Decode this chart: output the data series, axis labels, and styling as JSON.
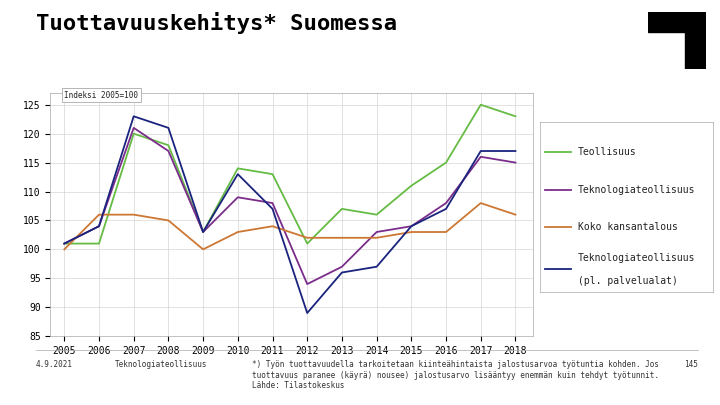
{
  "title": "Tuottavuuskehitys* Suomessa",
  "ylabel_note": "Indeksi 2005=100",
  "years": [
    2005,
    2006,
    2007,
    2008,
    2009,
    2010,
    2011,
    2012,
    2013,
    2014,
    2015,
    2016,
    2017,
    2018
  ],
  "series": {
    "Teollisuus": {
      "values": [
        101,
        101,
        120,
        118,
        103,
        114,
        113,
        101,
        107,
        106,
        111,
        115,
        125,
        123
      ],
      "color": "#66bb44",
      "linewidth": 1.3,
      "linestyle": "-"
    },
    "Teknologiateollisuus": {
      "values": [
        101,
        104,
        121,
        117,
        103,
        109,
        108,
        94,
        97,
        103,
        104,
        108,
        116,
        115
      ],
      "color": "#7b2d8b",
      "linewidth": 1.3,
      "linestyle": "-"
    },
    "Koko kansantalous": {
      "values": [
        100,
        106,
        106,
        105,
        100,
        103,
        104,
        102,
        102,
        102,
        103,
        103,
        108,
        106
      ],
      "color": "#cc7733",
      "linewidth": 1.3,
      "linestyle": "-"
    },
    "Teknologiateollisuus\n(pl. palvelualat)": {
      "values": [
        101,
        104,
        123,
        121,
        103,
        113,
        107,
        89,
        96,
        97,
        104,
        107,
        117,
        117
      ],
      "color": "#1a237e",
      "linewidth": 1.3,
      "linestyle": "-"
    }
  },
  "xlim": [
    2004.6,
    2018.5
  ],
  "ylim": [
    85,
    127
  ],
  "yticks": [
    85,
    90,
    95,
    100,
    105,
    110,
    115,
    120,
    125
  ],
  "xticks": [
    2005,
    2006,
    2007,
    2008,
    2009,
    2010,
    2011,
    2012,
    2013,
    2014,
    2015,
    2016,
    2017,
    2018
  ],
  "background_color": "#ffffff",
  "plot_bg_color": "#ffffff",
  "grid_color": "#cccccc",
  "footer_left": "4.9.2021",
  "footer_center": "Teknologiateollisuus",
  "footer_right_note": "*) Työn tuottavuudella tarkoitetaan kiinteähintaista jalostusarvoa työtuntia kohden. Jos\ntuottavuus paranee (käyrä) nousee) jalostusarvo lisääntyy enemmän kuin tehdyt työtunnit.\nLähde: Tilastokeskus",
  "page_number": "145",
  "title_fontsize": 16,
  "tick_fontsize": 7,
  "legend_fontsize": 7,
  "footer_fontsize": 5.5
}
